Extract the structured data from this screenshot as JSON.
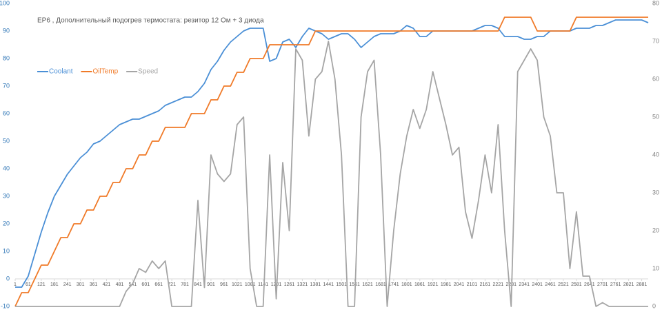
{
  "chart_data": {
    "type": "line",
    "title": "ЕР6 , Дополнительный подогрев термостата: резитор 12 Ом + 3 диода",
    "x": [
      1,
      31,
      61,
      91,
      121,
      151,
      181,
      211,
      241,
      271,
      301,
      331,
      361,
      391,
      421,
      451,
      481,
      511,
      541,
      571,
      601,
      631,
      661,
      691,
      721,
      751,
      781,
      811,
      841,
      871,
      901,
      931,
      961,
      991,
      1021,
      1051,
      1081,
      1111,
      1141,
      1171,
      1201,
      1231,
      1261,
      1291,
      1321,
      1351,
      1381,
      1411,
      1441,
      1471,
      1501,
      1531,
      1561,
      1591,
      1621,
      1651,
      1681,
      1711,
      1741,
      1771,
      1801,
      1831,
      1861,
      1891,
      1921,
      1951,
      1981,
      2011,
      2041,
      2071,
      2101,
      2131,
      2161,
      2191,
      2221,
      2251,
      2281,
      2311,
      2341,
      2371,
      2401,
      2431,
      2461,
      2491,
      2521,
      2551,
      2581,
      2611,
      2641,
      2671,
      2701,
      2731,
      2761,
      2791,
      2821,
      2851,
      2881,
      2911
    ],
    "series": [
      {
        "name": "Coolant",
        "color": "#4a8fd6",
        "values": [
          -3,
          -3,
          1,
          9,
          17,
          24,
          30,
          34,
          38,
          41,
          44,
          46,
          49,
          50,
          52,
          54,
          56,
          57,
          58,
          58,
          59,
          60,
          61,
          63,
          64,
          65,
          66,
          66,
          68,
          71,
          76,
          79,
          83,
          86,
          88,
          90,
          91,
          91,
          91,
          79,
          80,
          86,
          87,
          84,
          88,
          91,
          90,
          89,
          87,
          88,
          89,
          89,
          87,
          84,
          86,
          88,
          89,
          89,
          89,
          90,
          92,
          91,
          88,
          88,
          90,
          90,
          90,
          90,
          90,
          90,
          90,
          91,
          92,
          92,
          91,
          88,
          88,
          88,
          87,
          87,
          88,
          88,
          90,
          90,
          90,
          90,
          91,
          91,
          91,
          92,
          92,
          93,
          94,
          94,
          94,
          94,
          94,
          93
        ]
      },
      {
        "name": "OilTemp",
        "color": "#f07a28",
        "values": [
          -10,
          -5,
          -5,
          0,
          5,
          5,
          10,
          15,
          15,
          20,
          20,
          25,
          25,
          30,
          30,
          35,
          35,
          40,
          40,
          45,
          45,
          50,
          50,
          55,
          55,
          55,
          55,
          60,
          60,
          60,
          65,
          65,
          70,
          70,
          75,
          75,
          80,
          80,
          80,
          85,
          85,
          85,
          85,
          85,
          85,
          85,
          90,
          90,
          90,
          90,
          90,
          90,
          90,
          90,
          90,
          90,
          90,
          90,
          90,
          90,
          90,
          90,
          90,
          90,
          90,
          90,
          90,
          90,
          90,
          90,
          90,
          90,
          90,
          90,
          90,
          95,
          95,
          95,
          95,
          95,
          90,
          90,
          90,
          90,
          90,
          90,
          95,
          95,
          95,
          95,
          95,
          95,
          95,
          95,
          95,
          95,
          95,
          95
        ]
      },
      {
        "name": "Speed",
        "color": "#a5a5a5",
        "axis": "y2",
        "values": [
          0,
          0,
          0,
          0,
          0,
          0,
          0,
          0,
          0,
          0,
          0,
          0,
          0,
          0,
          0,
          0,
          0,
          4,
          6,
          10,
          9,
          12,
          10,
          12,
          0,
          0,
          0,
          0,
          28,
          5,
          40,
          35,
          33,
          35,
          48,
          50,
          10,
          0,
          0,
          40,
          2,
          38,
          20,
          68,
          65,
          45,
          60,
          62,
          70,
          60,
          40,
          0,
          0,
          50,
          62,
          65,
          40,
          0,
          20,
          35,
          45,
          52,
          47,
          52,
          62,
          55,
          48,
          40,
          42,
          25,
          18,
          28,
          40,
          30,
          48,
          20,
          0,
          62,
          65,
          68,
          65,
          50,
          45,
          30,
          30,
          10,
          25,
          8,
          8,
          0,
          1,
          0,
          0,
          0,
          0,
          0,
          0,
          0
        ]
      }
    ],
    "xlim": [
      1,
      2911
    ],
    "xticks": [
      1,
      61,
      121,
      181,
      241,
      301,
      361,
      421,
      481,
      541,
      601,
      661,
      721,
      781,
      841,
      901,
      961,
      1021,
      1081,
      1141,
      1201,
      1261,
      1321,
      1381,
      1441,
      1501,
      1561,
      1621,
      1681,
      1741,
      1801,
      1861,
      1921,
      1981,
      2041,
      2101,
      2161,
      2221,
      2281,
      2341,
      2401,
      2461,
      2521,
      2581,
      2641,
      2701,
      2761,
      2821,
      2881
    ],
    "ylim": [
      -10,
      100
    ],
    "yticks": [
      -10,
      0,
      10,
      20,
      30,
      40,
      50,
      60,
      70,
      80,
      90,
      100
    ],
    "y2lim": [
      0,
      80
    ],
    "y2ticks": [
      0,
      10,
      20,
      30,
      40,
      50,
      60,
      70,
      80
    ],
    "grid": false,
    "legend": "left"
  }
}
